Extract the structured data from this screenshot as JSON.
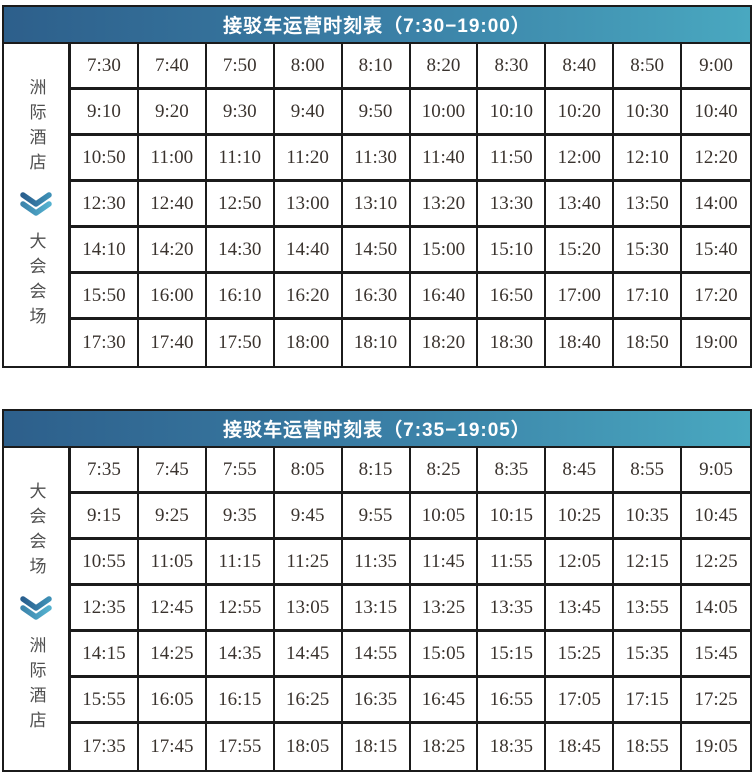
{
  "colors": {
    "header-grad-left": "#2d5f8b",
    "header-grad-mid": "#3a7ea5",
    "header-grad-right": "#49a8c0",
    "grid-line": "#1b1b1b",
    "time-text": "#3a332e",
    "label-text": "#4f4f4f",
    "chevron-dark-start": "#2a5f8e",
    "chevron-dark-end": "#3e90b6",
    "chevron-light-start": "#3d85ac",
    "chevron-light-end": "#54b1cf"
  },
  "tables": [
    {
      "title": "接驳车运营时刻表（7:30−19:00）",
      "route": {
        "from": "洲际酒店",
        "to": "大会会场"
      },
      "rows": [
        [
          "7:30",
          "7:40",
          "7:50",
          "8:00",
          "8:10",
          "8:20",
          "8:30",
          "8:40",
          "8:50",
          "9:00"
        ],
        [
          "9:10",
          "9:20",
          "9:30",
          "9:40",
          "9:50",
          "10:00",
          "10:10",
          "10:20",
          "10:30",
          "10:40"
        ],
        [
          "10:50",
          "11:00",
          "11:10",
          "11:20",
          "11:30",
          "11:40",
          "11:50",
          "12:00",
          "12:10",
          "12:20"
        ],
        [
          "12:30",
          "12:40",
          "12:50",
          "13:00",
          "13:10",
          "13:20",
          "13:30",
          "13:40",
          "13:50",
          "14:00"
        ],
        [
          "14:10",
          "14:20",
          "14:30",
          "14:40",
          "14:50",
          "15:00",
          "15:10",
          "15:20",
          "15:30",
          "15:40"
        ],
        [
          "15:50",
          "16:00",
          "16:10",
          "16:20",
          "16:30",
          "16:40",
          "16:50",
          "17:00",
          "17:10",
          "17:20"
        ],
        [
          "17:30",
          "17:40",
          "17:50",
          "18:00",
          "18:10",
          "18:20",
          "18:30",
          "18:40",
          "18:50",
          "19:00"
        ]
      ]
    },
    {
      "title": "接驳车运营时刻表（7:35−19:05）",
      "route": {
        "from": "大会会场",
        "to": "洲际酒店"
      },
      "rows": [
        [
          "7:35",
          "7:45",
          "7:55",
          "8:05",
          "8:15",
          "8:25",
          "8:35",
          "8:45",
          "8:55",
          "9:05"
        ],
        [
          "9:15",
          "9:25",
          "9:35",
          "9:45",
          "9:55",
          "10:05",
          "10:15",
          "10:25",
          "10:35",
          "10:45"
        ],
        [
          "10:55",
          "11:05",
          "11:15",
          "11:25",
          "11:35",
          "11:45",
          "11:55",
          "12:05",
          "12:15",
          "12:25"
        ],
        [
          "12:35",
          "12:45",
          "12:55",
          "13:05",
          "13:15",
          "13:25",
          "13:35",
          "13:45",
          "13:55",
          "14:05"
        ],
        [
          "14:15",
          "14:25",
          "14:35",
          "14:45",
          "14:55",
          "15:05",
          "15:15",
          "15:25",
          "15:35",
          "15:45"
        ],
        [
          "15:55",
          "16:05",
          "16:15",
          "16:25",
          "16:35",
          "16:45",
          "16:55",
          "17:05",
          "17:15",
          "17:25"
        ],
        [
          "17:35",
          "17:45",
          "17:55",
          "18:05",
          "18:15",
          "18:25",
          "18:35",
          "18:45",
          "18:55",
          "19:05"
        ]
      ]
    }
  ]
}
